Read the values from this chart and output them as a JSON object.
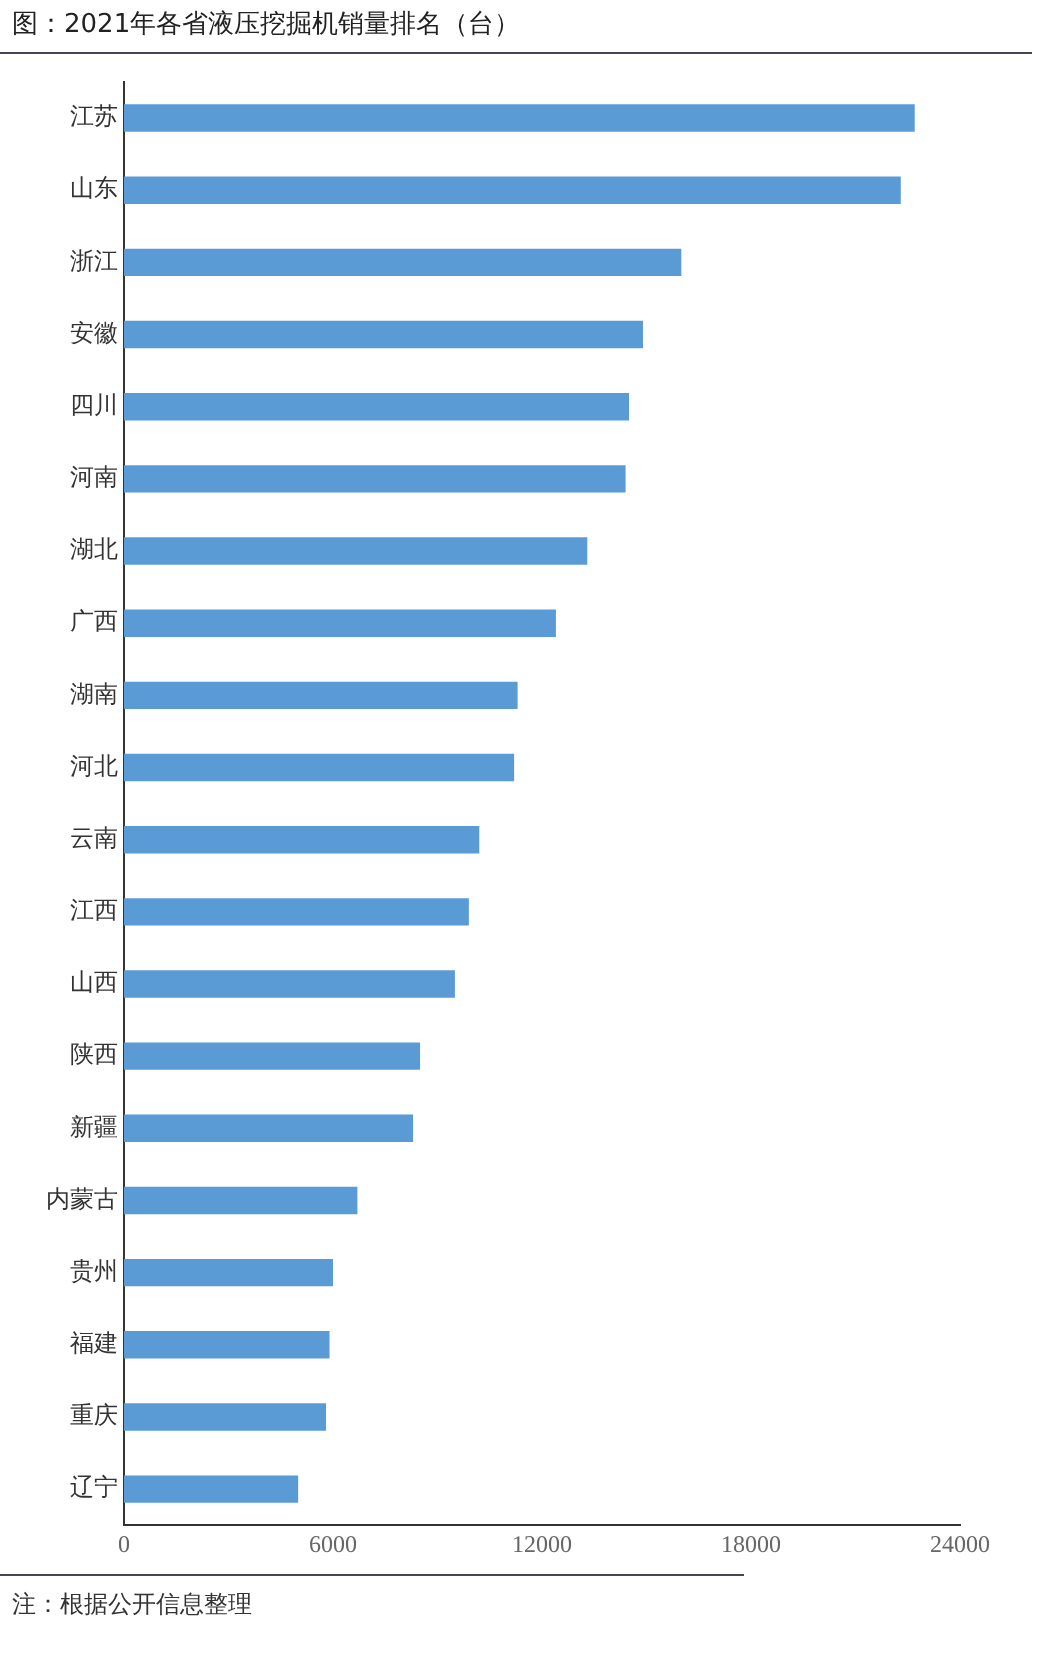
{
  "chart_data": {
    "type": "bar",
    "orientation": "horizontal",
    "title": "图：2021年各省液压挖掘机销量排名（台）",
    "annotations": [
      "注：根据公开信息整理"
    ],
    "categories": [
      "江苏",
      "山东",
      "浙江",
      "安徽",
      "四川",
      "河南",
      "湖北",
      "广西",
      "湖南",
      "河北",
      "云南",
      "江西",
      "山西",
      "陕西",
      "新疆",
      "内蒙古",
      "贵州",
      "福建",
      "重庆",
      "辽宁"
    ],
    "values": [
      22700,
      22300,
      16000,
      14900,
      14500,
      14400,
      13300,
      12400,
      11300,
      11200,
      10200,
      9900,
      9500,
      8500,
      8300,
      6700,
      6000,
      5900,
      5800,
      5000
    ],
    "color": "#5b9bd5",
    "xlim": [
      0,
      24000
    ],
    "xticks": [
      0,
      6000,
      12000,
      18000,
      24000
    ],
    "grid": false,
    "legend": false
  }
}
